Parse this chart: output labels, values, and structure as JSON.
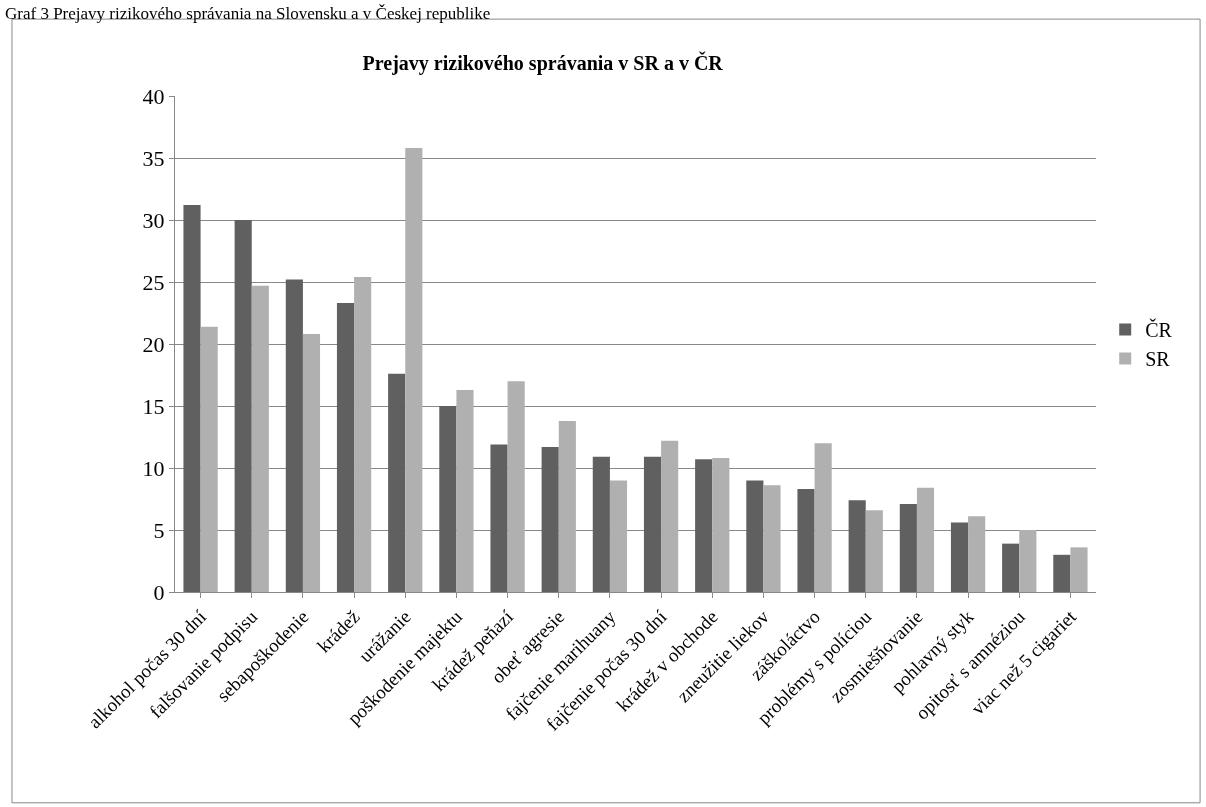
{
  "chart_data": {
    "type": "bar",
    "title": "Prejavy rizikového správania v SR a v ČR",
    "annotations": [
      "Graf 3 Prejavy rizikového správania na Slovensku a v Českej republike"
    ],
    "categories": [
      "alkohol počas 30 dní",
      "falšovanie podpisu",
      "sebapoškodenie",
      "krádež",
      "urážanie",
      "poškodenie majektu",
      "krádež peňazí",
      "obeť agresie",
      "fajčenie marihuany",
      "fajčenie počas 30 dní",
      "krádež v obchode",
      "zneužitie liekov",
      "záškoláctvo",
      "problémy s políciou",
      "zosmiešňovanie",
      "pohlavný styk",
      "opitosť s amnéziou",
      "viac než 5 cigariet"
    ],
    "series": [
      {
        "name": "ČR",
        "color": "#606060",
        "values": [
          31.2,
          30.0,
          25.2,
          23.3,
          17.6,
          15.0,
          11.9,
          11.7,
          10.9,
          10.9,
          10.7,
          9.0,
          8.3,
          7.4,
          7.1,
          5.6,
          3.9,
          3.0
        ]
      },
      {
        "name": "SR",
        "color": "#b0b0b0",
        "values": [
          21.4,
          24.7,
          20.8,
          25.4,
          35.8,
          16.3,
          17.0,
          13.8,
          9.0,
          12.2,
          10.8,
          8.6,
          12.0,
          6.6,
          8.4,
          6.1,
          5.0,
          3.6
        ]
      }
    ],
    "ylim": [
      0,
      40
    ],
    "yticks": [
      0,
      5,
      10,
      15,
      20,
      25,
      30,
      35,
      40
    ],
    "grid": "y",
    "legend": "right"
  }
}
